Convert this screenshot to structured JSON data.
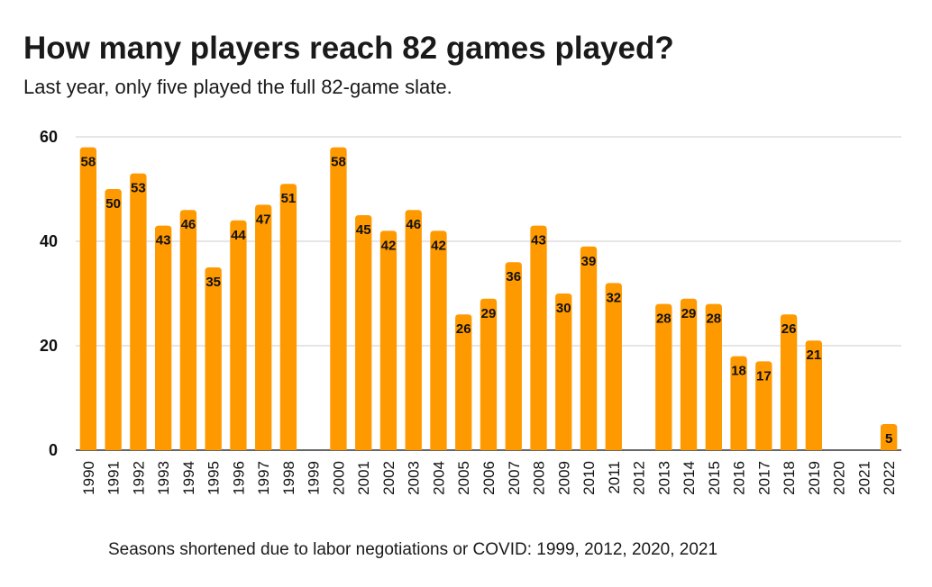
{
  "title": "How many players reach 82 games played?",
  "subtitle": "Last year, only five played the full 82-game slate.",
  "footnote": "Seasons shortened due to labor negotiations or COVID: 1999, 2012, 2020, 2021",
  "colors": {
    "bar": "#ff9900",
    "grid": "#cccccc",
    "axis": "#333333"
  },
  "chart_data": {
    "type": "bar",
    "categories": [
      "1990",
      "1991",
      "1992",
      "1993",
      "1994",
      "1995",
      "1996",
      "1997",
      "1998",
      "1999",
      "2000",
      "2001",
      "2002",
      "2003",
      "2004",
      "2005",
      "2006",
      "2007",
      "2008",
      "2009",
      "2010",
      "2011",
      "2012",
      "2013",
      "2014",
      "2015",
      "2016",
      "2017",
      "2018",
      "2019",
      "2020",
      "2021",
      "2022"
    ],
    "values": [
      58,
      50,
      53,
      43,
      46,
      35,
      44,
      47,
      51,
      null,
      58,
      45,
      42,
      46,
      42,
      26,
      29,
      36,
      43,
      30,
      39,
      32,
      null,
      28,
      29,
      28,
      18,
      17,
      26,
      21,
      null,
      null,
      5
    ],
    "ylim": [
      0,
      60
    ],
    "yticks": [
      0,
      20,
      40,
      60
    ],
    "grid": true,
    "data_labels": true,
    "title": "How many players reach 82 games played?",
    "subtitle": "Last year, only five played the full 82-game slate.",
    "annotation": "Seasons shortened due to labor negotiations or COVID: 1999, 2012, 2020, 2021"
  }
}
